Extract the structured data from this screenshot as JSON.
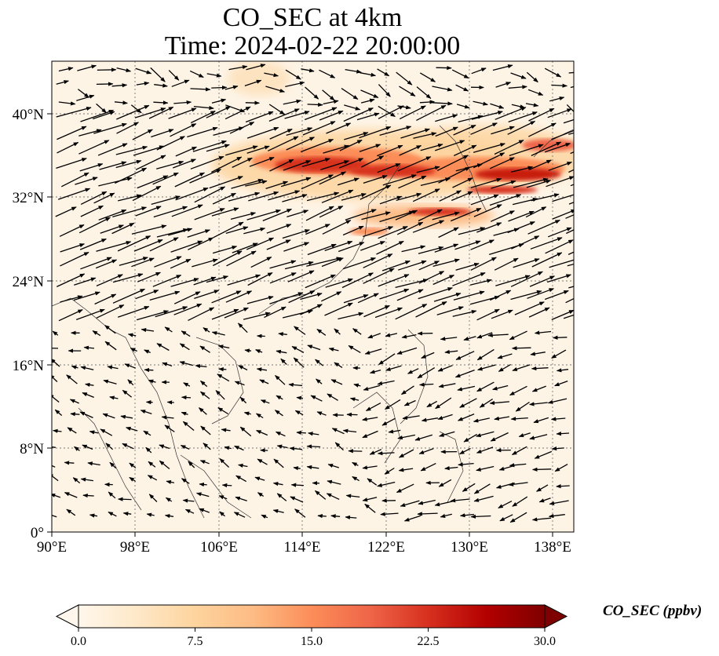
{
  "title": {
    "line1": "CO_SEC at 4km",
    "line2": "Time: 2024-02-22 20:00:00"
  },
  "map": {
    "variable": "CO_SEC",
    "level": "4km",
    "time": "2024-02-22 20:00:00",
    "extent": {
      "lon": [
        90,
        140
      ],
      "lat": [
        0,
        45
      ]
    },
    "x_ticks": [
      "90°E",
      "98°E",
      "106°E",
      "114°E",
      "122°E",
      "130°E",
      "138°E"
    ],
    "y_ticks": [
      "0°",
      "8°N",
      "16°N",
      "24°N",
      "32°N",
      "40°N"
    ],
    "gridlines": "dotted",
    "background_color": "#fef4e6",
    "plume_color": "#c81d0f"
  },
  "colorbar": {
    "label": "CO_SEC (ppbv)",
    "ticks": [
      "0.0",
      "7.5",
      "15.0",
      "22.5",
      "30.0"
    ],
    "range": [
      0,
      30
    ],
    "extend": "both",
    "colormap": "OrRd",
    "stops": [
      "#fff7ec",
      "#fee8c8",
      "#fdd49e",
      "#fdbb84",
      "#fc8d59",
      "#ef6548",
      "#d7301f",
      "#b30000",
      "#7f0000"
    ]
  }
}
